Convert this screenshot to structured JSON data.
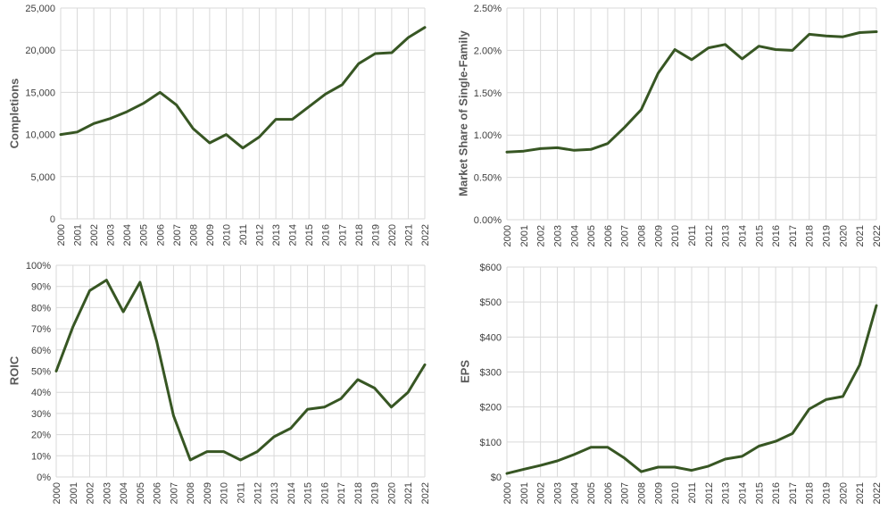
{
  "colors": {
    "line": "#375623",
    "grid": "#d9d9d9",
    "text": "#404040"
  },
  "chart_data": [
    {
      "type": "line",
      "ylabel": "Completions",
      "ylim": [
        0,
        25000
      ],
      "yticks": [
        "0",
        "5,000",
        "10,000",
        "15,000",
        "20,000",
        "25,000"
      ],
      "categories": [
        "2000",
        "2001",
        "2002",
        "2003",
        "2004",
        "2005",
        "2006",
        "2007",
        "2008",
        "2009",
        "2010",
        "2011",
        "2012",
        "2013",
        "2014",
        "2015",
        "2016",
        "2017",
        "2018",
        "2019",
        "2020",
        "2021",
        "2022"
      ],
      "values": [
        10000,
        10300,
        11300,
        11900,
        12700,
        13700,
        15000,
        13500,
        10700,
        9000,
        10000,
        8400,
        9700,
        11800,
        11800,
        13300,
        14800,
        15900,
        18400,
        19600,
        19700,
        21500,
        22700
      ],
      "grid": true
    },
    {
      "type": "line",
      "ylabel": "Market Share of Single-Family",
      "ylim": [
        0,
        0.025
      ],
      "yticks": [
        "0.00%",
        "0.50%",
        "1.00%",
        "1.50%",
        "2.00%",
        "2.50%"
      ],
      "categories": [
        "2000",
        "2001",
        "2002",
        "2003",
        "2004",
        "2005",
        "2006",
        "2007",
        "2008",
        "2009",
        "2010",
        "2011",
        "2012",
        "2013",
        "2014",
        "2015",
        "2016",
        "2017",
        "2018",
        "2019",
        "2020",
        "2021",
        "2022"
      ],
      "values": [
        0.008,
        0.0081,
        0.0084,
        0.0085,
        0.0082,
        0.0083,
        0.009,
        0.0109,
        0.013,
        0.0173,
        0.0201,
        0.0189,
        0.0203,
        0.0207,
        0.019,
        0.0205,
        0.0201,
        0.02,
        0.0219,
        0.0217,
        0.0216,
        0.0221,
        0.0222
      ],
      "grid": true
    },
    {
      "type": "line",
      "ylabel": "ROIC",
      "ylim": [
        0,
        1.0
      ],
      "yticks": [
        "0%",
        "10%",
        "20%",
        "30%",
        "40%",
        "50%",
        "60%",
        "70%",
        "80%",
        "90%",
        "100%"
      ],
      "categories": [
        "2000",
        "2001",
        "2002",
        "2003",
        "2004",
        "2005",
        "2006",
        "2007",
        "2008",
        "2009",
        "2010",
        "2011",
        "2012",
        "2013",
        "2014",
        "2015",
        "2016",
        "2017",
        "2018",
        "2019",
        "2020",
        "2021",
        "2022"
      ],
      "values": [
        0.5,
        0.71,
        0.88,
        0.93,
        0.78,
        0.92,
        0.64,
        0.29,
        0.08,
        0.12,
        0.12,
        0.08,
        0.12,
        0.19,
        0.23,
        0.32,
        0.33,
        0.37,
        0.46,
        0.42,
        0.33,
        0.4,
        0.53
      ],
      "grid": true
    },
    {
      "type": "line",
      "ylabel": "EPS",
      "ylim": [
        0,
        600
      ],
      "yticks": [
        "$0",
        "$100",
        "$200",
        "$300",
        "$400",
        "$500",
        "$600"
      ],
      "categories": [
        "2000",
        "2001",
        "2002",
        "2003",
        "2004",
        "2005",
        "2006",
        "2007",
        "2008",
        "2009",
        "2010",
        "2011",
        "2012",
        "2013",
        "2014",
        "2015",
        "2016",
        "2017",
        "2018",
        "2019",
        "2020",
        "2021",
        "2022"
      ],
      "values": [
        10,
        22,
        33,
        46,
        64,
        85,
        85,
        54,
        15,
        28,
        28,
        19,
        31,
        51,
        59,
        88,
        102,
        124,
        194,
        221,
        230,
        320,
        490
      ],
      "grid": true
    }
  ]
}
